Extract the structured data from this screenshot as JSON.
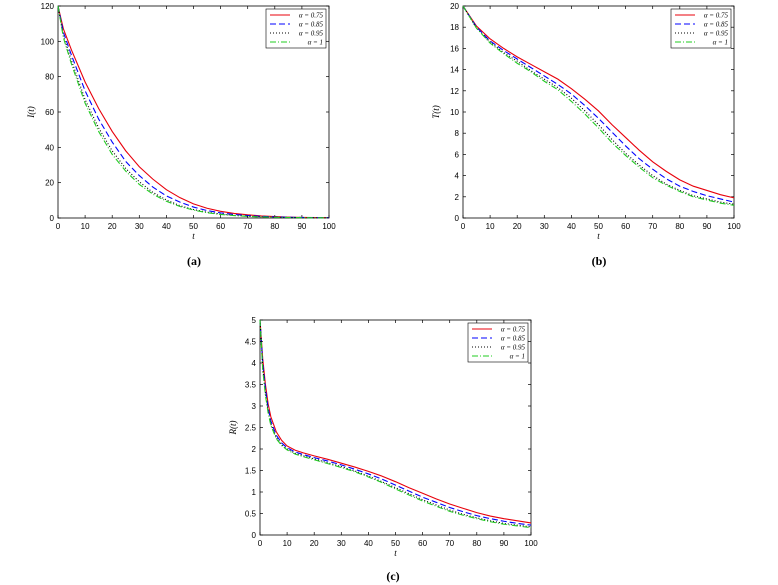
{
  "colors": {
    "red": "#e8000b",
    "blue": "#0000ff",
    "black": "#000000",
    "green": "#22cc22"
  },
  "chart_data": [
    {
      "type": "line",
      "panel": "(a)",
      "xlabel": "t",
      "ylabel": "I(t)",
      "xlim": [
        0,
        100
      ],
      "ylim": [
        0,
        120
      ],
      "xticks": [
        0,
        10,
        20,
        30,
        40,
        50,
        60,
        70,
        80,
        90,
        100
      ],
      "yticks": [
        0,
        20,
        40,
        60,
        80,
        100,
        120
      ],
      "grid": false,
      "legend_position": "top-right",
      "x": [
        0,
        2,
        5,
        10,
        15,
        20,
        25,
        30,
        35,
        40,
        45,
        50,
        55,
        60,
        65,
        70,
        75,
        80,
        85,
        90,
        95,
        100
      ],
      "series": [
        {
          "name": "α = 0.75",
          "color": "#e8000b",
          "dash": "solid",
          "values": [
            120,
            107,
            95,
            77,
            62,
            49,
            38,
            29,
            22,
            16,
            11.5,
            8,
            5.5,
            3.8,
            2.6,
            1.8,
            1.2,
            0.8,
            0.5,
            0.35,
            0.25,
            0.2
          ]
        },
        {
          "name": "α = 0.85",
          "color": "#0000ff",
          "dash": "dashed",
          "values": [
            120,
            105,
            92,
            72,
            56,
            43,
            32,
            24,
            17.5,
            12.5,
            9,
            6.2,
            4.2,
            2.9,
            2,
            1.4,
            0.9,
            0.6,
            0.4,
            0.3,
            0.2,
            0.15
          ]
        },
        {
          "name": "α = 0.95",
          "color": "#000000",
          "dash": "dotted",
          "values": [
            120,
            103,
            89,
            67,
            51,
            38,
            28,
            20.5,
            14.5,
            10.2,
            7,
            4.8,
            3.3,
            2.2,
            1.5,
            1,
            0.7,
            0.45,
            0.3,
            0.2,
            0.15,
            0.1
          ]
        },
        {
          "name": "α = 1",
          "color": "#22cc22",
          "dash": "dashdot",
          "values": [
            120,
            102,
            87,
            65,
            49,
            36,
            26.5,
            19,
            13.5,
            9.5,
            6.5,
            4.5,
            3,
            2,
            1.4,
            0.9,
            0.6,
            0.4,
            0.28,
            0.18,
            0.12,
            0.08
          ]
        }
      ]
    },
    {
      "type": "line",
      "panel": "(b)",
      "xlabel": "t",
      "ylabel": "T(t)",
      "xlim": [
        0,
        100
      ],
      "ylim": [
        0,
        20
      ],
      "xticks": [
        0,
        10,
        20,
        30,
        40,
        50,
        60,
        70,
        80,
        90,
        100
      ],
      "yticks": [
        0,
        2,
        4,
        6,
        8,
        10,
        12,
        14,
        16,
        18,
        20
      ],
      "grid": false,
      "legend_position": "top-right",
      "x": [
        0,
        5,
        10,
        15,
        20,
        25,
        30,
        35,
        40,
        45,
        50,
        55,
        60,
        65,
        70,
        75,
        80,
        85,
        90,
        95,
        100
      ],
      "series": [
        {
          "name": "α = 0.75",
          "color": "#e8000b",
          "dash": "solid",
          "values": [
            20,
            18.1,
            16.9,
            16,
            15.2,
            14.5,
            13.8,
            13.1,
            12.2,
            11.2,
            10.1,
            8.8,
            7.6,
            6.4,
            5.3,
            4.4,
            3.6,
            3,
            2.6,
            2.2,
            1.9
          ]
        },
        {
          "name": "α = 0.85",
          "color": "#0000ff",
          "dash": "dashed",
          "values": [
            20,
            18,
            16.7,
            15.8,
            15,
            14.2,
            13.4,
            12.6,
            11.7,
            10.6,
            9.4,
            8.1,
            6.8,
            5.6,
            4.6,
            3.7,
            3,
            2.5,
            2.1,
            1.8,
            1.5
          ]
        },
        {
          "name": "α = 0.95",
          "color": "#000000",
          "dash": "dotted",
          "values": [
            20,
            17.9,
            16.6,
            15.6,
            14.8,
            13.9,
            13.1,
            12.3,
            11.3,
            10.1,
            8.8,
            7.4,
            6.1,
            5,
            4,
            3.2,
            2.6,
            2.1,
            1.8,
            1.5,
            1.3
          ]
        },
        {
          "name": "α = 1",
          "color": "#22cc22",
          "dash": "dashdot",
          "values": [
            20,
            17.9,
            16.5,
            15.5,
            14.6,
            13.8,
            12.9,
            12.1,
            11,
            9.8,
            8.5,
            7.1,
            5.9,
            4.8,
            3.8,
            3.1,
            2.5,
            2,
            1.7,
            1.4,
            1.2
          ]
        }
      ]
    },
    {
      "type": "line",
      "panel": "(c)",
      "xlabel": "t",
      "ylabel": "R(t)",
      "xlim": [
        0,
        100
      ],
      "ylim": [
        0,
        5
      ],
      "xticks": [
        0,
        10,
        20,
        30,
        40,
        50,
        60,
        70,
        80,
        90,
        100
      ],
      "yticks": [
        0,
        0.5,
        1,
        1.5,
        2,
        2.5,
        3,
        3.5,
        4,
        4.5,
        5
      ],
      "grid": false,
      "legend_position": "top-right",
      "x": [
        0,
        1,
        2,
        3,
        4,
        6,
        8,
        10,
        13,
        16,
        20,
        25,
        30,
        35,
        40,
        45,
        50,
        55,
        60,
        65,
        70,
        75,
        80,
        85,
        90,
        95,
        100
      ],
      "series": [
        {
          "name": "α = 0.75",
          "color": "#e8000b",
          "dash": "solid",
          "values": [
            5,
            4.1,
            3.5,
            3.05,
            2.75,
            2.4,
            2.2,
            2.07,
            1.97,
            1.91,
            1.84,
            1.76,
            1.67,
            1.58,
            1.48,
            1.37,
            1.24,
            1.1,
            0.97,
            0.84,
            0.72,
            0.62,
            0.52,
            0.44,
            0.38,
            0.33,
            0.28
          ]
        },
        {
          "name": "α = 0.85",
          "color": "#0000ff",
          "dash": "dashed",
          "values": [
            5,
            4,
            3.4,
            2.95,
            2.65,
            2.32,
            2.14,
            2.03,
            1.93,
            1.87,
            1.8,
            1.72,
            1.63,
            1.53,
            1.42,
            1.3,
            1.16,
            1.02,
            0.88,
            0.76,
            0.64,
            0.54,
            0.45,
            0.38,
            0.32,
            0.27,
            0.23
          ]
        },
        {
          "name": "α = 0.95",
          "color": "#000000",
          "dash": "dotted",
          "values": [
            5,
            3.9,
            3.3,
            2.88,
            2.58,
            2.27,
            2.1,
            2,
            1.9,
            1.84,
            1.77,
            1.68,
            1.59,
            1.49,
            1.37,
            1.24,
            1.1,
            0.96,
            0.82,
            0.7,
            0.58,
            0.48,
            0.4,
            0.33,
            0.27,
            0.23,
            0.19
          ]
        },
        {
          "name": "α = 1",
          "color": "#22cc22",
          "dash": "dashdot",
          "values": [
            5,
            3.85,
            3.25,
            2.84,
            2.55,
            2.24,
            2.08,
            1.98,
            1.88,
            1.82,
            1.75,
            1.66,
            1.57,
            1.47,
            1.35,
            1.22,
            1.07,
            0.93,
            0.79,
            0.67,
            0.55,
            0.46,
            0.38,
            0.31,
            0.25,
            0.21,
            0.17
          ]
        }
      ]
    }
  ]
}
